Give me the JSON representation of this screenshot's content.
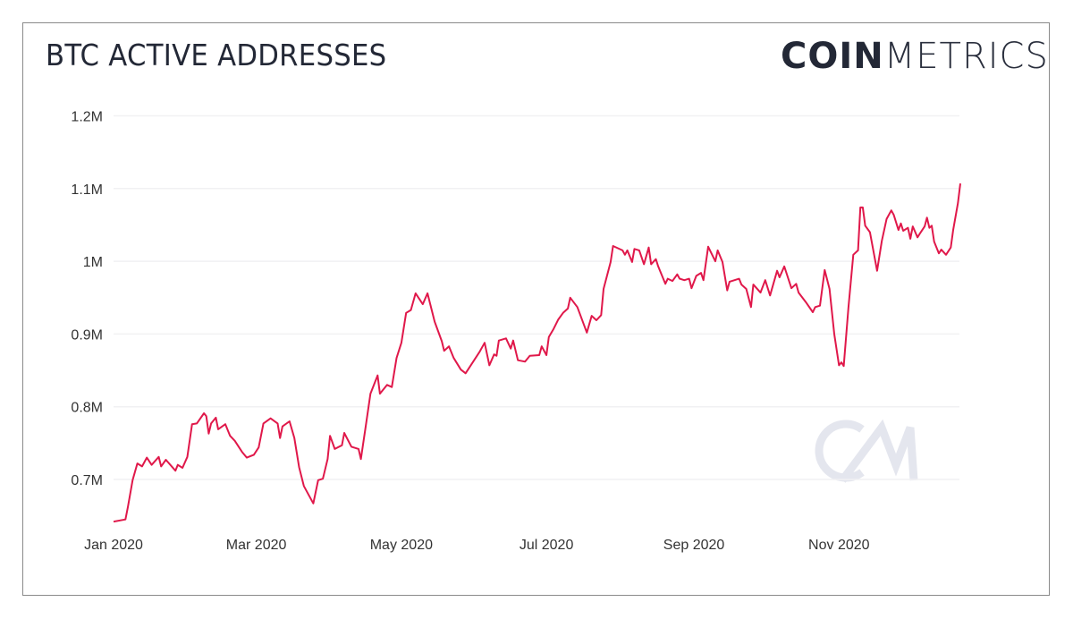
{
  "chart_data": {
    "type": "line",
    "title": "BTC ACTIVE ADDRESSES",
    "xlabel": "",
    "ylabel": "",
    "ylim": [
      600000,
      1200000
    ],
    "yticks": [
      {
        "value": 700000,
        "label": "0.7M"
      },
      {
        "value": 800000,
        "label": "0.8M"
      },
      {
        "value": 900000,
        "label": "0.9M"
      },
      {
        "value": 1000000,
        "label": "1M"
      },
      {
        "value": 1100000,
        "label": "1.1M"
      },
      {
        "value": 1200000,
        "label": "1.2M"
      }
    ],
    "xticks": [
      {
        "value": "2020-01-01",
        "label": "Jan 2020"
      },
      {
        "value": "2020-03-01",
        "label": "Mar 2020"
      },
      {
        "value": "2020-05-01",
        "label": "May 2020"
      },
      {
        "value": "2020-07-01",
        "label": "Jul 2020"
      },
      {
        "value": "2020-09-01",
        "label": "Sep 2020"
      },
      {
        "value": "2020-11-01",
        "label": "Nov 2020"
      }
    ],
    "grid": true,
    "line_color": "#e0184a",
    "series": [
      {
        "x": [
          "2020-01-01",
          "2020-01-06",
          "2020-01-07",
          "2020-01-09",
          "2020-01-11",
          "2020-01-13",
          "2020-01-15",
          "2020-01-17",
          "2020-01-20",
          "2020-01-21",
          "2020-01-23",
          "2020-01-27",
          "2020-01-28",
          "2020-01-30",
          "2020-02-01",
          "2020-02-03",
          "2020-02-05",
          "2020-02-08",
          "2020-02-09",
          "2020-02-10",
          "2020-02-11",
          "2020-02-13",
          "2020-02-14",
          "2020-02-17",
          "2020-02-19",
          "2020-02-21",
          "2020-02-24",
          "2020-02-26",
          "2020-02-29",
          "2020-03-02",
          "2020-03-04",
          "2020-03-07",
          "2020-03-10",
          "2020-03-11",
          "2020-03-12",
          "2020-03-15",
          "2020-03-17",
          "2020-03-19",
          "2020-03-21",
          "2020-03-25",
          "2020-03-27",
          "2020-03-29",
          "2020-03-31",
          "2020-04-01",
          "2020-04-03",
          "2020-04-06",
          "2020-04-07",
          "2020-04-10",
          "2020-04-13",
          "2020-04-14",
          "2020-04-16",
          "2020-04-18",
          "2020-04-21",
          "2020-04-22",
          "2020-04-25",
          "2020-04-27",
          "2020-04-29",
          "2020-05-01",
          "2020-05-03",
          "2020-05-05",
          "2020-05-07",
          "2020-05-10",
          "2020-05-12",
          "2020-05-15",
          "2020-05-18",
          "2020-05-19",
          "2020-05-21",
          "2020-05-23",
          "2020-05-26",
          "2020-05-28",
          "2020-05-31",
          "2020-06-03",
          "2020-06-05",
          "2020-06-07",
          "2020-06-09",
          "2020-06-10",
          "2020-06-11",
          "2020-06-14",
          "2020-06-16",
          "2020-06-17",
          "2020-06-19",
          "2020-06-22",
          "2020-06-24",
          "2020-06-28",
          "2020-06-29",
          "2020-07-01",
          "2020-07-02",
          "2020-07-04",
          "2020-07-06",
          "2020-07-08",
          "2020-07-10",
          "2020-07-11",
          "2020-07-14",
          "2020-07-18",
          "2020-07-20",
          "2020-07-22",
          "2020-07-24",
          "2020-07-25",
          "2020-07-28",
          "2020-07-29",
          "2020-08-02",
          "2020-08-03",
          "2020-08-04",
          "2020-08-06",
          "2020-08-07",
          "2020-08-09",
          "2020-08-11",
          "2020-08-13",
          "2020-08-14",
          "2020-08-16",
          "2020-08-17",
          "2020-08-20",
          "2020-08-21",
          "2020-08-23",
          "2020-08-25",
          "2020-08-26",
          "2020-08-28",
          "2020-08-30",
          "2020-08-31",
          "2020-09-02",
          "2020-09-04",
          "2020-09-05",
          "2020-09-07",
          "2020-09-10",
          "2020-09-11",
          "2020-09-13",
          "2020-09-15",
          "2020-09-16",
          "2020-09-20",
          "2020-09-21",
          "2020-09-23",
          "2020-09-25",
          "2020-09-26",
          "2020-09-29",
          "2020-10-01",
          "2020-10-03",
          "2020-10-06",
          "2020-10-07",
          "2020-10-09",
          "2020-10-12",
          "2020-10-14",
          "2020-10-15",
          "2020-10-18",
          "2020-10-21",
          "2020-10-22",
          "2020-10-24",
          "2020-10-26",
          "2020-10-28",
          "2020-10-30",
          "2020-11-01",
          "2020-11-02",
          "2020-11-03",
          "2020-11-05",
          "2020-11-07",
          "2020-11-09",
          "2020-11-10",
          "2020-11-11",
          "2020-11-12",
          "2020-11-14",
          "2020-11-17",
          "2020-11-19",
          "2020-11-21",
          "2020-11-23",
          "2020-11-24",
          "2020-11-26",
          "2020-11-27",
          "2020-11-28",
          "2020-11-30",
          "2020-12-01",
          "2020-12-02",
          "2020-12-04",
          "2020-12-05",
          "2020-12-07",
          "2020-12-08",
          "2020-12-09",
          "2020-12-10",
          "2020-12-11",
          "2020-12-13",
          "2020-12-14",
          "2020-12-16",
          "2020-12-18",
          "2020-12-19",
          "2020-12-21",
          "2020-12-22"
        ],
        "values": [
          642000,
          645000,
          662000,
          699000,
          722000,
          718000,
          730000,
          720000,
          731000,
          718000,
          727000,
          712000,
          720000,
          716000,
          731000,
          776000,
          777000,
          791000,
          787000,
          763000,
          777000,
          785000,
          769000,
          776000,
          760000,
          753000,
          738000,
          730000,
          734000,
          744000,
          777000,
          784000,
          777000,
          757000,
          773000,
          780000,
          757000,
          717000,
          691000,
          667000,
          699000,
          701000,
          728000,
          760000,
          742000,
          747000,
          764000,
          745000,
          742000,
          728000,
          773000,
          818000,
          843000,
          818000,
          830000,
          827000,
          867000,
          888000,
          929000,
          933000,
          956000,
          941000,
          956000,
          917000,
          890000,
          877000,
          883000,
          867000,
          851000,
          846000,
          861000,
          876000,
          888000,
          857000,
          872000,
          870000,
          891000,
          894000,
          880000,
          891000,
          864000,
          862000,
          870000,
          871000,
          883000,
          871000,
          896000,
          907000,
          920000,
          929000,
          935000,
          950000,
          937000,
          902000,
          925000,
          919000,
          926000,
          962000,
          999000,
          1021000,
          1015000,
          1009000,
          1015000,
          999000,
          1017000,
          1015000,
          996000,
          1019000,
          996000,
          1003000,
          993000,
          969000,
          976000,
          973000,
          982000,
          976000,
          974000,
          976000,
          963000,
          980000,
          984000,
          974000,
          1020000,
          1000000,
          1015000,
          999000,
          960000,
          972000,
          976000,
          968000,
          962000,
          937000,
          968000,
          957000,
          974000,
          953000,
          987000,
          978000,
          993000,
          963000,
          969000,
          957000,
          944000,
          930000,
          937000,
          939000,
          988000,
          962000,
          900000,
          857000,
          861000,
          856000,
          937000,
          1009000,
          1015000,
          1074000,
          1074000,
          1049000,
          1040000,
          987000,
          1028000,
          1058000,
          1070000,
          1064000,
          1043000,
          1052000,
          1042000,
          1046000,
          1031000,
          1048000,
          1033000,
          1038000,
          1048000,
          1060000,
          1046000,
          1049000,
          1027000,
          1011000,
          1016000,
          1009000,
          1019000,
          1043000,
          1080000,
          1107000
        ]
      }
    ]
  },
  "header": {
    "title": "BTC ACTIVE ADDRESSES",
    "logo_text_bold": "COIN",
    "logo_text_light": "METRICS",
    "watermark": "CM"
  }
}
